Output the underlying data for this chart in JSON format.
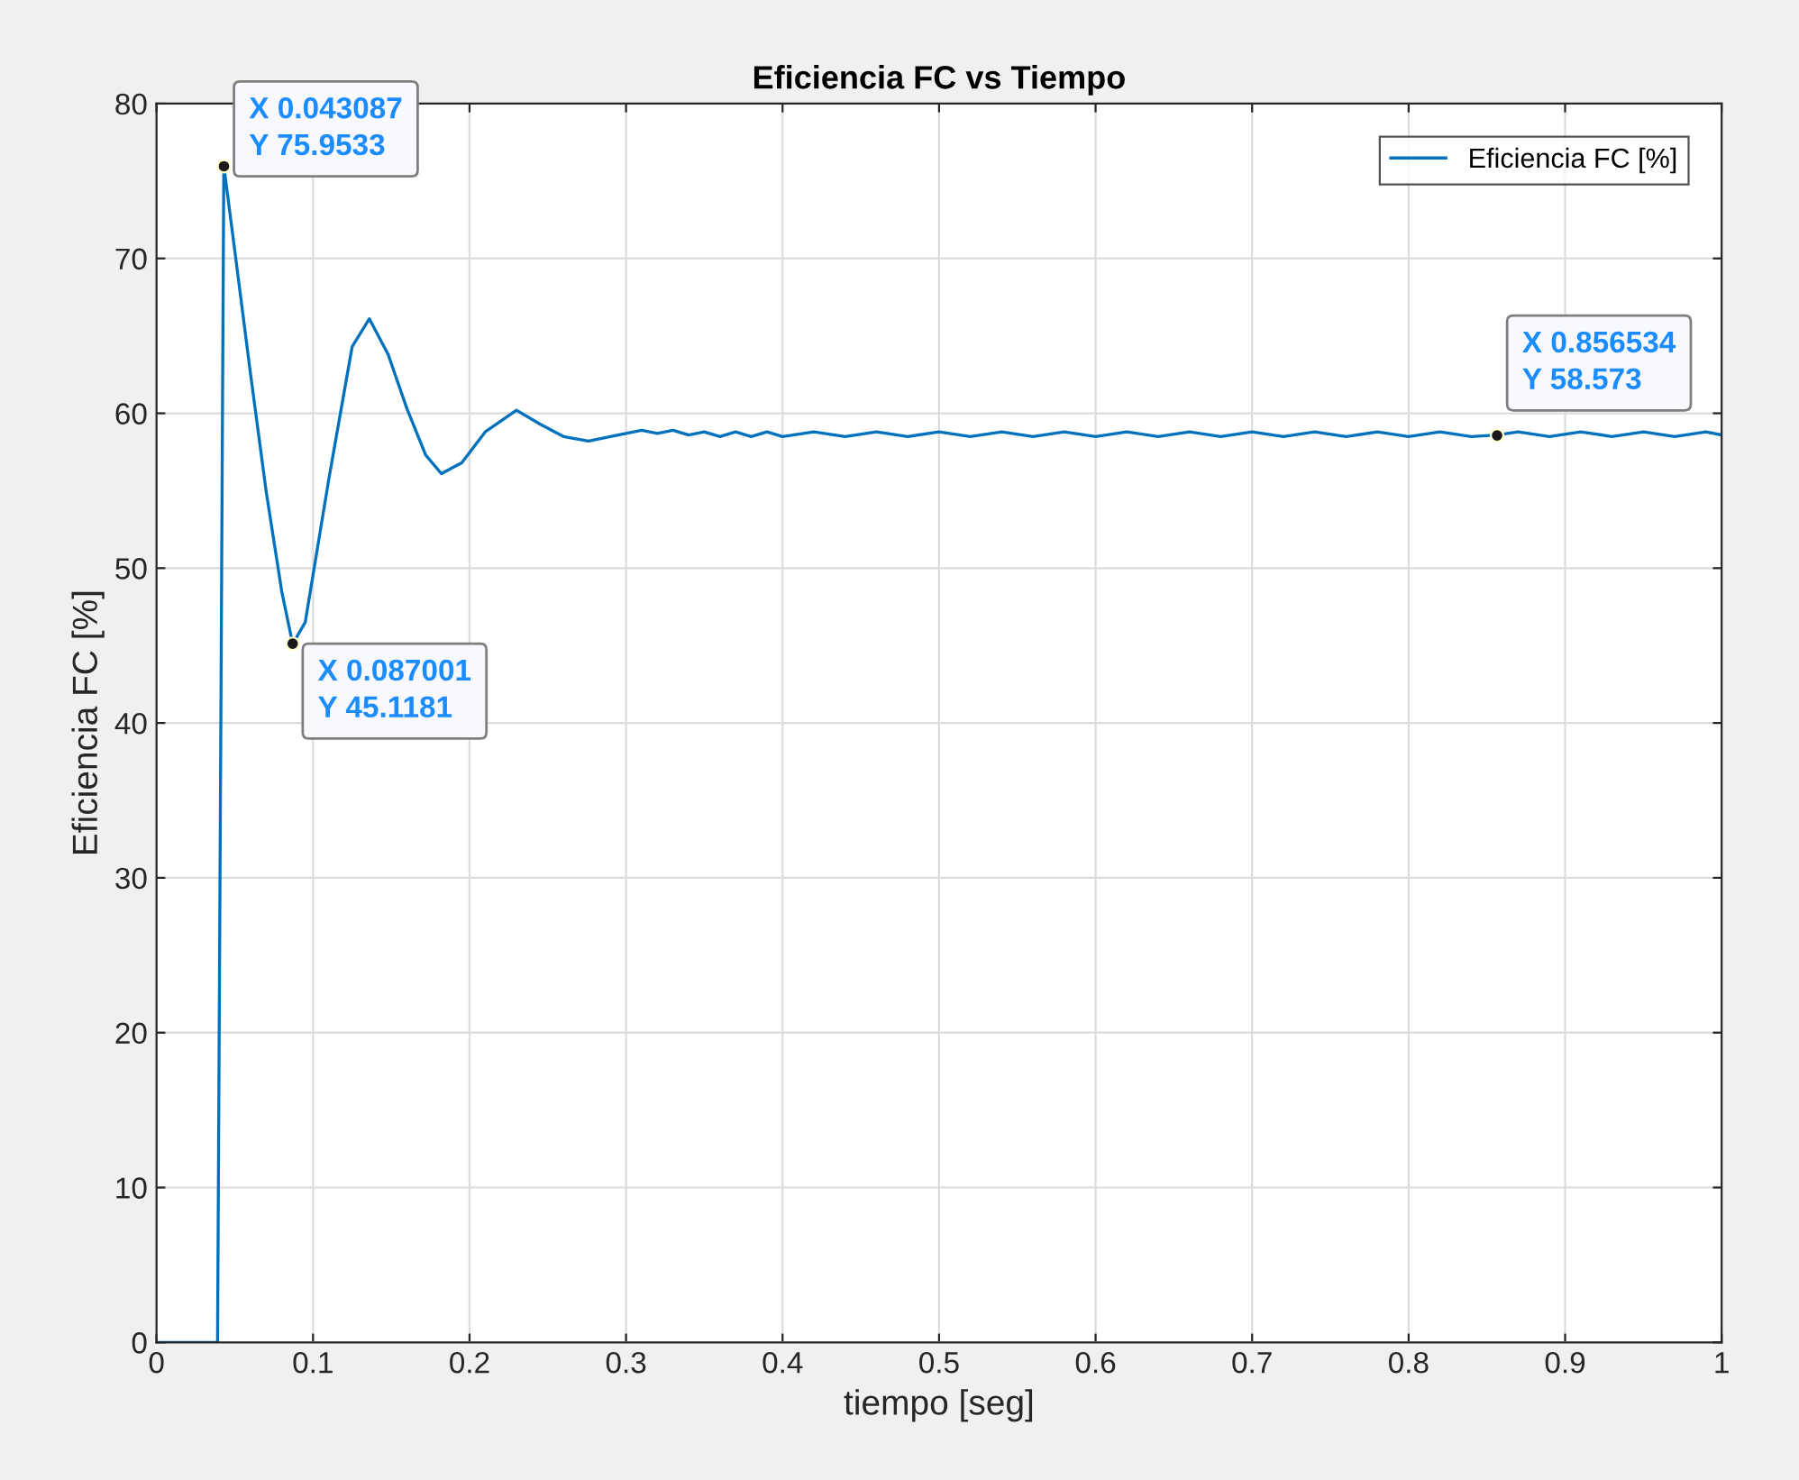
{
  "chart_data": {
    "type": "line",
    "title": "Eficiencia FC vs Tiempo",
    "xlabel": "tiempo [seg]",
    "ylabel": "Eficiencia FC [%]",
    "xlim": [
      0,
      1
    ],
    "ylim": [
      0,
      80
    ],
    "xticks": [
      0,
      0.1,
      0.2,
      0.3,
      0.4,
      0.5,
      0.6,
      0.7,
      0.8,
      0.9,
      1
    ],
    "yticks": [
      0,
      10,
      20,
      30,
      40,
      50,
      60,
      70,
      80
    ],
    "grid": true,
    "legend": "top right",
    "series": [
      {
        "name": "Eficiencia FC [%]",
        "color": "#0072bd",
        "x": [
          0,
          0.039,
          0.043,
          0.05,
          0.06,
          0.07,
          0.08,
          0.087,
          0.095,
          0.11,
          0.125,
          0.136,
          0.148,
          0.16,
          0.172,
          0.182,
          0.195,
          0.21,
          0.23,
          0.245,
          0.26,
          0.276,
          0.29,
          0.3,
          0.31,
          0.32,
          0.33,
          0.34,
          0.35,
          0.36,
          0.37,
          0.38,
          0.39,
          0.4,
          0.42,
          0.44,
          0.46,
          0.48,
          0.5,
          0.52,
          0.54,
          0.56,
          0.58,
          0.6,
          0.62,
          0.64,
          0.66,
          0.68,
          0.7,
          0.72,
          0.74,
          0.76,
          0.78,
          0.8,
          0.82,
          0.84,
          0.856534,
          0.87,
          0.89,
          0.91,
          0.93,
          0.95,
          0.97,
          0.99,
          1
        ],
        "values": [
          0,
          0,
          76,
          70.5,
          62.6,
          55.0,
          48.5,
          45.1,
          46.5,
          55.7,
          64.3,
          66.1,
          63.8,
          60.3,
          57.3,
          56.1,
          56.8,
          58.8,
          60.2,
          59.3,
          58.5,
          58.2,
          58.5,
          58.7,
          58.9,
          58.7,
          58.9,
          58.6,
          58.8,
          58.5,
          58.8,
          58.5,
          58.8,
          58.5,
          58.8,
          58.5,
          58.8,
          58.5,
          58.8,
          58.5,
          58.8,
          58.5,
          58.8,
          58.5,
          58.8,
          58.5,
          58.8,
          58.5,
          58.8,
          58.5,
          58.8,
          58.5,
          58.8,
          58.5,
          58.8,
          58.5,
          58.6,
          58.8,
          58.5,
          58.8,
          58.5,
          58.8,
          58.5,
          58.8,
          58.6
        ]
      }
    ],
    "annotations": [
      {
        "text": "X 0.043087\nY 75.9533",
        "x": 0.043087,
        "y": 75.9533
      },
      {
        "text": "X 0.087001\nY 45.1181",
        "x": 0.087001,
        "y": 45.1181
      },
      {
        "text": "X 0.856534\nY 58.573",
        "x": 0.856534,
        "y": 58.573
      }
    ]
  }
}
